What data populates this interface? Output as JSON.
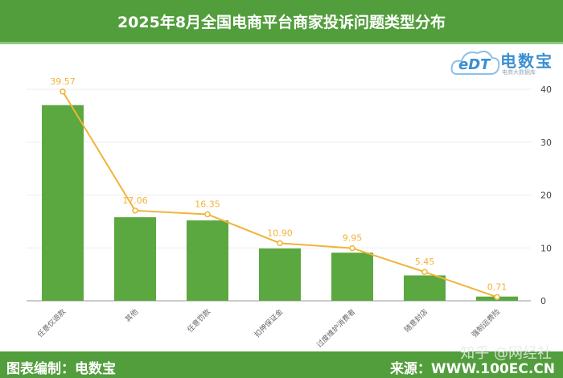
{
  "header": {
    "title": "2025年8月全国电商平台商家投诉问题类型分布"
  },
  "logo": {
    "text": "电数宝",
    "latin": "eDT",
    "subtitle": "电商大数据库"
  },
  "footer": {
    "left": "图表编制：电数宝",
    "right": "来源：WWW.100EC.CN",
    "watermark": "知乎 @网经社"
  },
  "colors": {
    "bar": "#5aa83f",
    "line": "#f0b43a",
    "header": "#529d3c"
  },
  "chart_data": {
    "type": "bar+line",
    "categories": [
      "任意仅退款",
      "其他",
      "任意罚款",
      "扣押保证金",
      "过度维护消费者",
      "随意封店",
      "强制运费险"
    ],
    "series": [
      {
        "type": "bar",
        "values": [
          37.0,
          15.8,
          15.2,
          9.9,
          9.1,
          4.8,
          0.8
        ]
      },
      {
        "type": "line",
        "values": [
          39.57,
          17.06,
          16.35,
          10.9,
          9.95,
          5.45,
          0.71
        ],
        "data_labels": [
          "39.57",
          "17.06",
          "16.35",
          "10.90",
          "9.95",
          "5.45",
          "0.71"
        ]
      }
    ],
    "y_axis": {
      "position": "right",
      "ylim": [
        0,
        40
      ],
      "ticks": [
        "0",
        "10",
        "20",
        "30",
        "40"
      ]
    },
    "grid": true
  }
}
